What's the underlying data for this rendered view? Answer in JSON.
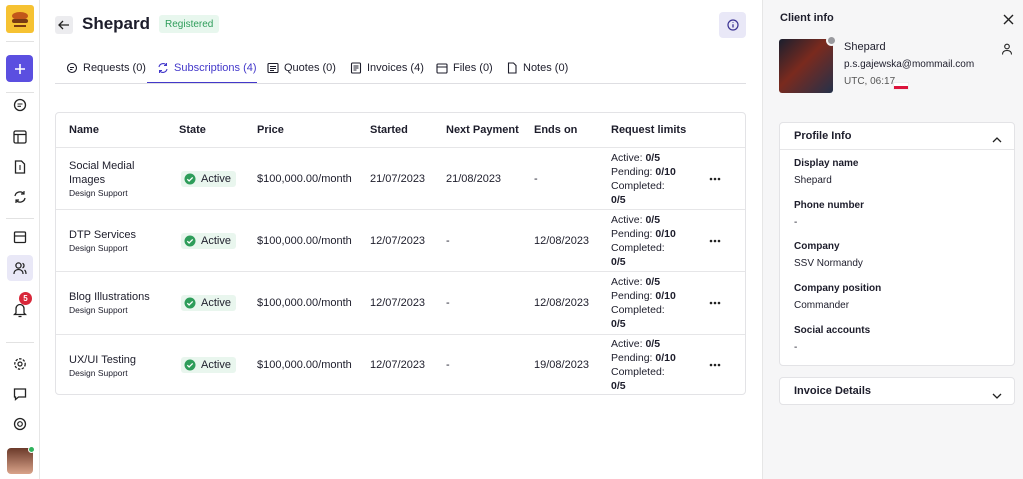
{
  "sidebar": {
    "notification_count": "5"
  },
  "header": {
    "title": "Shepard",
    "status": "Registered"
  },
  "tabs": [
    "Requests (0)",
    "Subscriptions (4)",
    "Quotes (0)",
    "Invoices (4)",
    "Files (0)",
    "Notes (0)"
  ],
  "table": {
    "columns": [
      "Name",
      "State",
      "Price",
      "Started",
      "Next Payment",
      "Ends on",
      "Request limits"
    ],
    "rows": [
      {
        "name": "Social Medial Images",
        "subtitle": "Design Support",
        "state": "Active",
        "price": "$100,000.00/month",
        "started": "21/07/2023",
        "next_payment": "21/08/2023",
        "ends_on": "-",
        "limits": [
          {
            "label": "Active:",
            "value": "0/5"
          },
          {
            "label": "Pending:",
            "value": "0/10"
          },
          {
            "label": "Completed:",
            "value": "0/5"
          }
        ]
      },
      {
        "name": "DTP Services",
        "subtitle": "Design Support",
        "state": "Active",
        "price": "$100,000.00/month",
        "started": "12/07/2023",
        "next_payment": "-",
        "ends_on": "12/08/2023",
        "limits": [
          {
            "label": "Active:",
            "value": "0/5"
          },
          {
            "label": "Pending:",
            "value": "0/10"
          },
          {
            "label": "Completed:",
            "value": "0/5"
          }
        ]
      },
      {
        "name": "Blog Illustrations",
        "subtitle": "Design Support",
        "state": "Active",
        "price": "$100,000.00/month",
        "started": "12/07/2023",
        "next_payment": "-",
        "ends_on": "12/08/2023",
        "limits": [
          {
            "label": "Active:",
            "value": "0/5"
          },
          {
            "label": "Pending:",
            "value": "0/10"
          },
          {
            "label": "Completed:",
            "value": "0/5"
          }
        ]
      },
      {
        "name": "UX/UI Testing",
        "subtitle": "Design Support",
        "state": "Active",
        "price": "$100,000.00/month",
        "started": "12/07/2023",
        "next_payment": "-",
        "ends_on": "19/08/2023",
        "limits": [
          {
            "label": "Active:",
            "value": "0/5"
          },
          {
            "label": "Pending:",
            "value": "0/10"
          },
          {
            "label": "Completed:",
            "value": "0/5"
          }
        ]
      }
    ]
  },
  "client_info": {
    "title": "Client info",
    "name": "Shepard",
    "email": "p.s.gajewska@mommail.com",
    "time": "UTC, 06:17"
  },
  "profile_info": {
    "title": "Profile Info",
    "fields": [
      {
        "label": "Display name",
        "value": "Shepard"
      },
      {
        "label": "Phone number",
        "value": "-"
      },
      {
        "label": "Company",
        "value": "SSV Normandy"
      },
      {
        "label": "Company position",
        "value": "Commander"
      },
      {
        "label": "Social accounts",
        "value": "-"
      }
    ]
  },
  "invoice_details": {
    "title": "Invoice Details"
  }
}
